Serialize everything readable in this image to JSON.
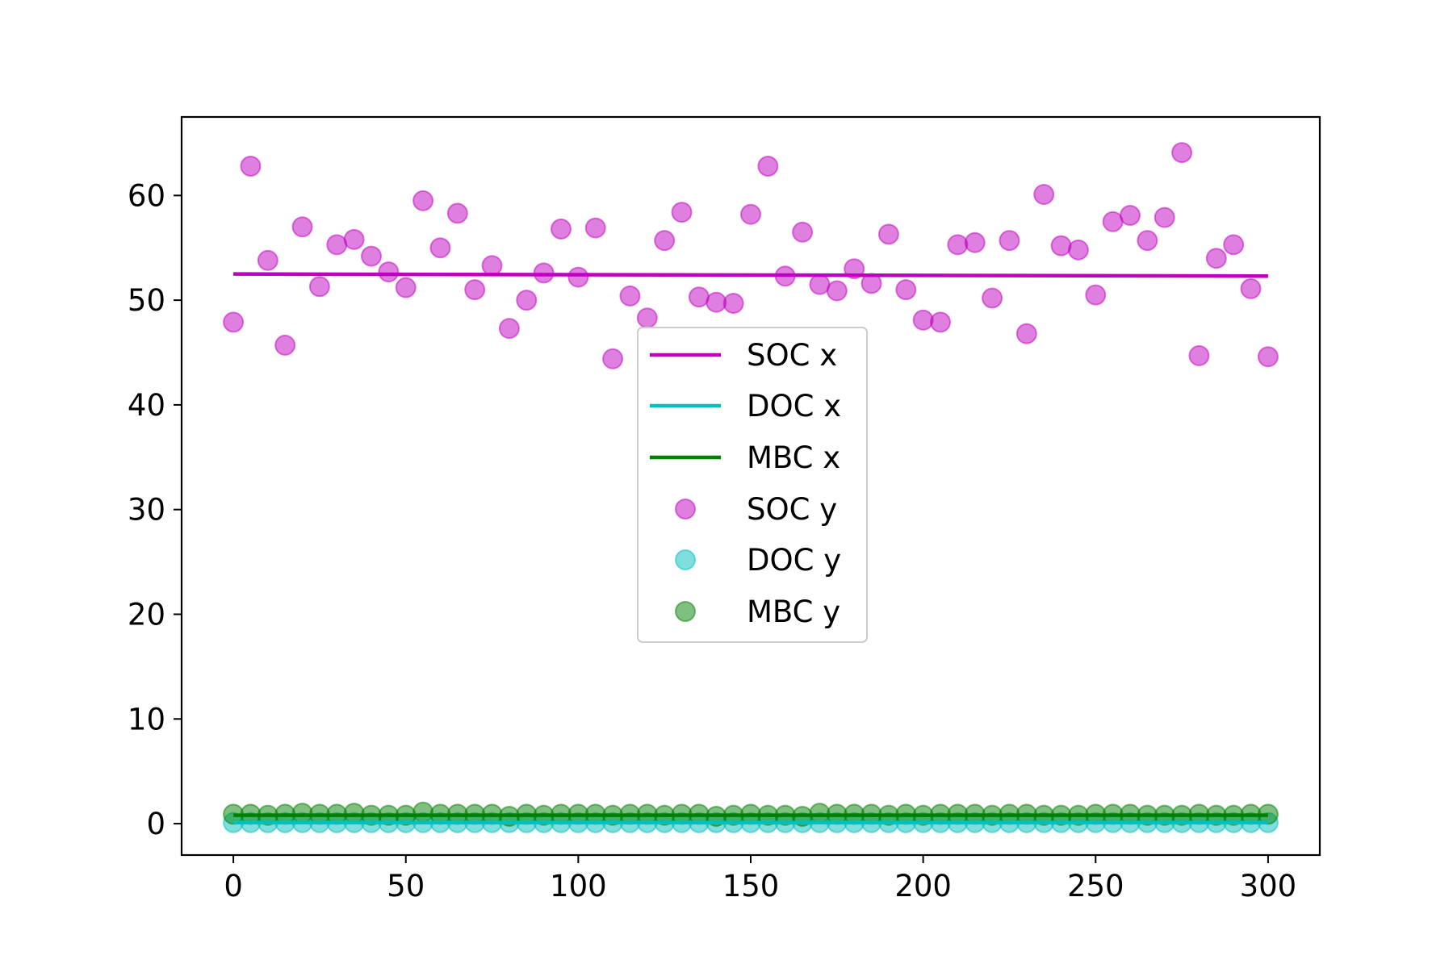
{
  "chart_data": {
    "type": "scatter",
    "title": "",
    "xlabel": "",
    "ylabel": "",
    "xlim": [
      -15,
      315
    ],
    "ylim": [
      -3,
      67.5
    ],
    "xticks": [
      0,
      50,
      100,
      150,
      200,
      250,
      300
    ],
    "yticks": [
      0,
      10,
      20,
      30,
      40,
      50,
      60
    ],
    "grid": false,
    "legend_position": "center",
    "x": [
      0,
      5,
      10,
      15,
      20,
      25,
      30,
      35,
      40,
      45,
      50,
      55,
      60,
      65,
      70,
      75,
      80,
      85,
      90,
      95,
      100,
      105,
      110,
      115,
      120,
      125,
      130,
      135,
      140,
      145,
      150,
      155,
      160,
      165,
      170,
      175,
      180,
      185,
      190,
      195,
      200,
      205,
      210,
      215,
      220,
      225,
      230,
      235,
      240,
      245,
      250,
      255,
      260,
      265,
      270,
      275,
      280,
      285,
      290,
      295,
      300
    ],
    "lines": [
      {
        "name": "SOC x",
        "color": "#bf00bf",
        "x": [
          0,
          300
        ],
        "y": [
          52.5,
          52.3
        ]
      },
      {
        "name": "DOC x",
        "color": "#00bfbf",
        "x": [
          0,
          300
        ],
        "y": [
          0.1,
          0.1
        ]
      },
      {
        "name": "MBC x",
        "color": "#008000",
        "x": [
          0,
          300
        ],
        "y": [
          0.8,
          0.8
        ]
      }
    ],
    "series": [
      {
        "name": "SOC y",
        "color": "#bf00bf",
        "values": [
          47.9,
          62.8,
          53.8,
          45.7,
          57.0,
          51.3,
          55.3,
          55.8,
          54.2,
          52.7,
          51.2,
          59.5,
          55.0,
          58.3,
          51.0,
          53.3,
          47.3,
          50.0,
          52.6,
          56.8,
          52.2,
          56.9,
          44.4,
          50.4,
          48.3,
          55.7,
          58.4,
          50.3,
          49.8,
          49.7,
          58.2,
          62.8,
          52.3,
          56.5,
          51.5,
          50.9,
          53.0,
          51.6,
          56.3,
          51.0,
          48.1,
          47.9,
          55.3,
          55.5,
          50.2,
          55.7,
          46.8,
          60.1,
          55.2,
          54.8,
          50.5,
          57.5,
          58.1,
          55.7,
          57.9,
          64.1,
          44.7,
          54.0,
          55.3,
          51.1,
          44.6
        ]
      },
      {
        "name": "DOC y",
        "color": "#00bfbf",
        "values": [
          0.1,
          0.1,
          0.1,
          0.1,
          0.1,
          0.1,
          0.1,
          0.1,
          0.1,
          0.1,
          0.1,
          0.1,
          0.1,
          0.1,
          0.1,
          0.1,
          0.1,
          0.1,
          0.1,
          0.1,
          0.1,
          0.1,
          0.1,
          0.1,
          0.1,
          0.1,
          0.1,
          0.1,
          0.1,
          0.1,
          0.1,
          0.1,
          0.1,
          0.1,
          0.1,
          0.1,
          0.1,
          0.1,
          0.1,
          0.1,
          0.1,
          0.1,
          0.1,
          0.1,
          0.1,
          0.1,
          0.1,
          0.1,
          0.1,
          0.1,
          0.1,
          0.1,
          0.1,
          0.1,
          0.1,
          0.1,
          0.1,
          0.1,
          0.1,
          0.1,
          0.1
        ]
      },
      {
        "name": "MBC y",
        "color": "#008000",
        "values": [
          0.9,
          0.9,
          0.8,
          0.9,
          1.0,
          0.9,
          0.9,
          1.0,
          0.8,
          0.8,
          0.8,
          1.1,
          0.9,
          0.9,
          0.9,
          0.9,
          0.7,
          0.9,
          0.8,
          0.9,
          0.9,
          0.9,
          0.8,
          0.9,
          0.9,
          0.8,
          0.9,
          0.9,
          0.7,
          0.8,
          0.9,
          0.8,
          0.8,
          0.7,
          1.0,
          0.9,
          0.9,
          0.9,
          0.8,
          0.9,
          0.8,
          0.9,
          0.9,
          0.9,
          0.8,
          0.9,
          0.9,
          0.8,
          0.8,
          0.8,
          0.9,
          0.9,
          0.9,
          0.8,
          0.8,
          0.8,
          0.9,
          0.8,
          0.8,
          0.9,
          0.9
        ]
      }
    ]
  }
}
